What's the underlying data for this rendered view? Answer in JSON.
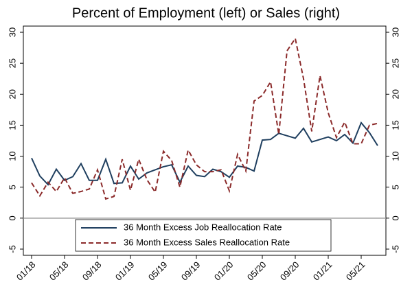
{
  "chart_data": {
    "type": "line",
    "title": "Percent of Employment (left) or Sales (right)",
    "categories": [
      "01/18",
      null,
      null,
      null,
      "05/18",
      null,
      null,
      null,
      "09/18",
      null,
      null,
      null,
      "01/19",
      null,
      null,
      null,
      "05/19",
      null,
      null,
      null,
      "09/19",
      null,
      null,
      null,
      "01/20",
      null,
      null,
      null,
      "05/20",
      null,
      null,
      null,
      "09/20",
      null,
      null,
      null,
      "01/21",
      null,
      null,
      null,
      "05/21",
      null,
      null
    ],
    "series": [
      {
        "name": "36 Month Excess Job Reallocation Rate",
        "color": "#1f3f5f",
        "style": "solid",
        "axis": "y",
        "values": [
          9.7,
          6.8,
          5.4,
          7.9,
          6.1,
          6.7,
          8.8,
          6.1,
          6.1,
          9.5,
          5.6,
          5.7,
          8.4,
          6.3,
          7.3,
          7.8,
          8.3,
          8.6,
          5.8,
          8.4,
          6.9,
          6.7,
          7.9,
          7.5,
          6.6,
          8.4,
          8.2,
          7.6,
          12.6,
          12.7,
          13.7,
          13.3,
          12.9,
          14.5,
          12.3,
          12.7,
          13.1,
          12.5,
          13.5,
          12.1,
          15.4,
          13.8,
          11.7
        ]
      },
      {
        "name": "36 Month Excess Sales Reallocation Rate",
        "color": "#8b2a2a",
        "style": "dashed",
        "axis": "y2",
        "values": [
          5.7,
          3.6,
          5.8,
          4.3,
          6.5,
          4.0,
          4.3,
          4.7,
          7.8,
          3.1,
          3.5,
          9.5,
          4.5,
          9.5,
          6.2,
          4.2,
          10.8,
          9.3,
          5.0,
          11.0,
          8.6,
          7.5,
          7.5,
          7.8,
          4.4,
          10.3,
          7.6,
          18.9,
          19.8,
          22.0,
          13.5,
          27.0,
          29.0,
          22.5,
          14.0,
          23.0,
          17.0,
          13.0,
          15.5,
          12.0,
          12.0,
          15.0,
          15.3
        ]
      }
    ],
    "ylim": [
      -6,
      31
    ],
    "yticks": [
      -5,
      0,
      5,
      10,
      15,
      20,
      25,
      30
    ],
    "y2lim": [
      -6,
      31
    ],
    "y2ticks": [
      -5,
      0,
      5,
      10,
      15,
      20,
      25,
      30
    ],
    "reference_line": 0,
    "legend": "bottom"
  }
}
